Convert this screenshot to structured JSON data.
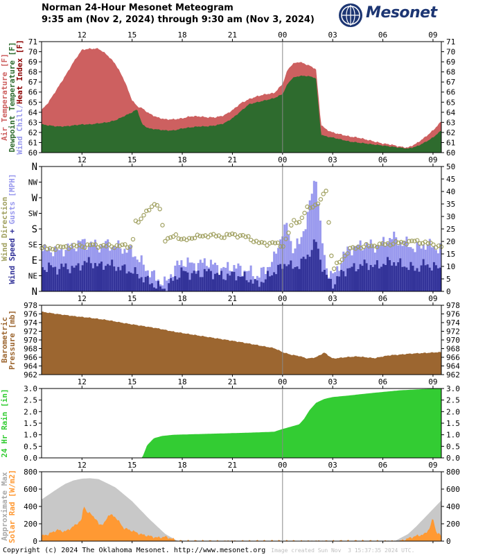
{
  "title_line1": "Norman 24-Hour Mesonet Meteogram",
  "title_line2": "9:35 am (Nov 2, 2024) through 9:30 am (Nov 3, 2024)",
  "logo_text": "Mesonet",
  "footer_copyright": "Copyright (c) 2024 The Oklahoma Mesonet. http://www.mesonet.org",
  "footer_stamp": "Image created Sun Nov  3 15:37:35 2024 UTC.",
  "colors": {
    "air_temperature": "#cd6060",
    "dewpoint": "#2e6b2e",
    "wind_chill_heat_index": "#8b0000",
    "wind_direction": "#a0a060",
    "wind_speed": "#333399",
    "wind_gust": "#9999ee",
    "pressure": "#9c6630",
    "rain": "#33cc33",
    "solar_max": "#c8c8c8",
    "solar_rad": "#ff9933"
  },
  "x_axis": {
    "start_hour": 9.583,
    "end_hour": 33.5,
    "tick_labels": [
      "12",
      "15",
      "18",
      "21",
      "00",
      "03",
      "06",
      "09"
    ],
    "tick_hours": [
      12,
      15,
      18,
      21,
      24,
      27,
      30,
      33
    ],
    "midnight_hour": 24
  },
  "chart_data": [
    {
      "type": "area",
      "name": "temperature",
      "ylabel_parts": [
        "Air Temperature [F]",
        "Dewpoint Temperature [F]",
        "Wind Chill/Heat Index [F]"
      ],
      "ylim": [
        60,
        71
      ],
      "y_ticks": [
        "60",
        "61",
        "62",
        "63",
        "64",
        "65",
        "66",
        "67",
        "68",
        "69",
        "70",
        "71"
      ],
      "x": [
        9.58,
        10,
        10.5,
        11,
        11.5,
        12,
        12.5,
        13,
        13.5,
        14,
        14.5,
        15,
        15.3,
        15.6,
        16,
        16.5,
        17,
        17.5,
        18,
        18.5,
        19,
        19.5,
        20,
        20.5,
        21,
        21.5,
        22,
        22.5,
        23,
        23.5,
        24,
        24.3,
        24.6,
        25,
        25.5,
        26,
        26.3,
        26.6,
        27,
        27.5,
        28,
        28.5,
        29,
        29.5,
        30,
        30.5,
        31,
        31.5,
        32,
        32.5,
        33,
        33.5
      ],
      "series": [
        {
          "name": "Air Temperature",
          "values": [
            64.2,
            65.0,
            66.3,
            67.6,
            69.0,
            70.2,
            70.3,
            70.3,
            69.7,
            68.8,
            67.3,
            65.2,
            64.6,
            64.4,
            63.9,
            63.5,
            63.3,
            63.3,
            63.4,
            63.6,
            63.6,
            63.5,
            63.5,
            63.7,
            64.2,
            64.9,
            65.3,
            65.6,
            65.8,
            65.9,
            66.8,
            68.2,
            68.8,
            69.0,
            68.7,
            68.3,
            62.8,
            62.3,
            62.0,
            61.8,
            61.6,
            61.5,
            61.3,
            61.1,
            60.9,
            60.8,
            60.6,
            60.5,
            60.9,
            61.5,
            62.2,
            63.1
          ]
        },
        {
          "name": "Dewpoint Temperature",
          "values": [
            62.8,
            62.7,
            62.6,
            62.6,
            62.7,
            62.8,
            62.8,
            62.9,
            63.0,
            63.2,
            63.6,
            64.0,
            64.3,
            62.8,
            62.4,
            62.3,
            62.2,
            62.2,
            62.4,
            62.5,
            62.6,
            62.6,
            62.7,
            62.9,
            63.4,
            64.1,
            64.8,
            65.0,
            65.2,
            65.4,
            65.8,
            66.8,
            67.4,
            67.6,
            67.6,
            67.4,
            61.8,
            61.6,
            61.5,
            61.3,
            61.1,
            61.0,
            60.9,
            60.8,
            60.7,
            60.6,
            60.5,
            60.4,
            60.6,
            61.0,
            61.5,
            62.2
          ]
        }
      ]
    },
    {
      "type": "bar",
      "name": "wind",
      "ylabel_parts": [
        "Wind Direction",
        "Wind Speed + Gusts [MPH]"
      ],
      "ylim": [
        0,
        50
      ],
      "y_ticks_right": [
        "0",
        "5",
        "10",
        "15",
        "20",
        "25",
        "30",
        "35",
        "40",
        "45",
        "50"
      ],
      "direction_ticks": [
        "N",
        "NE",
        "E",
        "SE",
        "S",
        "SW",
        "W",
        "NW",
        "N"
      ],
      "x": [
        9.58,
        10,
        10.5,
        11,
        11.5,
        12,
        12.5,
        13,
        13.5,
        14,
        14.5,
        15,
        15.5,
        16,
        16.5,
        17,
        17.5,
        18,
        18.5,
        19,
        19.5,
        20,
        20.5,
        21,
        21.5,
        22,
        22.5,
        23,
        23.5,
        24,
        24.3,
        24.6,
        25,
        25.5,
        25.8,
        26,
        26.3,
        26.6,
        27,
        27.3,
        27.6,
        28,
        28.5,
        29,
        29.5,
        30,
        30.5,
        31,
        31.5,
        32,
        32.5,
        33,
        33.5
      ],
      "series": [
        {
          "name": "Wind Speed",
          "values": [
            9,
            10,
            9,
            10,
            9,
            11,
            12,
            10,
            11,
            10,
            9,
            8,
            6,
            4,
            2,
            1,
            5,
            8,
            7,
            7,
            8,
            7,
            6,
            7,
            6,
            5,
            3,
            5,
            8,
            10,
            12,
            9,
            11,
            14,
            18,
            20,
            12,
            6,
            3,
            5,
            8,
            9,
            10,
            11,
            10,
            11,
            12,
            11,
            10,
            9,
            11,
            10,
            9
          ]
        },
        {
          "name": "Wind Gust",
          "values": [
            16,
            17,
            16,
            17,
            18,
            20,
            19,
            18,
            19,
            18,
            17,
            16,
            12,
            8,
            5,
            3,
            9,
            12,
            11,
            11,
            12,
            10,
            9,
            10,
            9,
            8,
            6,
            9,
            13,
            24,
            26,
            17,
            19,
            30,
            41,
            47,
            23,
            10,
            6,
            9,
            14,
            17,
            18,
            19,
            18,
            19,
            22,
            20,
            19,
            17,
            19,
            18,
            17
          ]
        }
      ],
      "direction_points": {
        "x": [
          9.6,
          10,
          10.5,
          11,
          11.5,
          12,
          12.5,
          13,
          13.5,
          14,
          14.5,
          15,
          15.2,
          15.4,
          15.6,
          15.8,
          16.2,
          16.6,
          17,
          17.3,
          17.6,
          18,
          18.5,
          19,
          19.5,
          20,
          20.5,
          21,
          21.5,
          22,
          22.5,
          23,
          23.5,
          24,
          24.2,
          24.4,
          24.7,
          25,
          25.5,
          26,
          26.3,
          26.6,
          27,
          27.3,
          27.6,
          28,
          28.5,
          29,
          29.5,
          30,
          30.5,
          31,
          31.5,
          32,
          32.5,
          33,
          33.5
        ],
        "deg": [
          125,
          122,
          126,
          128,
          130,
          131,
          133,
          132,
          130,
          131,
          132,
          130,
          205,
          192,
          218,
          230,
          242,
          255,
          140,
          155,
          165,
          145,
          155,
          158,
          162,
          160,
          158,
          165,
          160,
          155,
          140,
          138,
          140,
          130,
          150,
          175,
          205,
          200,
          240,
          250,
          262,
          295,
          60,
          80,
          95,
          120,
          128,
          130,
          132,
          135,
          138,
          140,
          142,
          145,
          140,
          135,
          128
        ]
      }
    },
    {
      "type": "area",
      "name": "pressure",
      "ylabel_parts": [
        "Barometric",
        "Pressure [mb]"
      ],
      "ylim": [
        962,
        978
      ],
      "y_ticks": [
        "962",
        "964",
        "966",
        "968",
        "970",
        "972",
        "974",
        "976",
        "978"
      ],
      "x": [
        9.58,
        10.5,
        11.5,
        12.5,
        13.5,
        14.5,
        15.5,
        16.5,
        17.5,
        18.5,
        19.5,
        20.5,
        21.5,
        22.5,
        23.5,
        24,
        24.5,
        25,
        25.5,
        26,
        26.5,
        27,
        27.5,
        28,
        28.5,
        29,
        29.5,
        30,
        30.5,
        31,
        31.5,
        32,
        32.5,
        33,
        33.5
      ],
      "values": [
        976.5,
        976.0,
        975.5,
        975.1,
        974.6,
        973.9,
        973.3,
        972.7,
        971.9,
        971.3,
        970.7,
        970.1,
        969.5,
        968.8,
        968.1,
        967.2,
        966.6,
        966.3,
        965.7,
        966.0,
        967.1,
        965.7,
        965.9,
        966.1,
        966.2,
        966.0,
        965.8,
        966.2,
        966.5,
        966.6,
        966.8,
        966.9,
        967.0,
        967.1,
        967.2
      ]
    },
    {
      "type": "area",
      "name": "rain",
      "ylabel": "24 Hr Rain [in]",
      "ylim": [
        0,
        3
      ],
      "y_ticks": [
        "0.0",
        "0.5",
        "1.0",
        "1.5",
        "2.0",
        "2.5",
        "3.0"
      ],
      "x": [
        9.58,
        15.6,
        15.9,
        16.3,
        16.8,
        17.5,
        18.5,
        20,
        22,
        23.5,
        24,
        24.5,
        25,
        25.3,
        25.6,
        26,
        26.5,
        27,
        28,
        29,
        30,
        31,
        32,
        33,
        33.5
      ],
      "values": [
        0.0,
        0.0,
        0.55,
        0.85,
        0.95,
        1.0,
        1.02,
        1.05,
        1.09,
        1.13,
        1.25,
        1.35,
        1.45,
        1.7,
        2.05,
        2.38,
        2.55,
        2.63,
        2.7,
        2.78,
        2.85,
        2.92,
        2.96,
        2.99,
        3.0
      ]
    },
    {
      "type": "area",
      "name": "solar",
      "ylabel_parts": [
        "Approximate Max",
        "Solar Rad [W/m2]"
      ],
      "ylim": [
        0,
        800
      ],
      "y_ticks": [
        "0",
        "200",
        "400",
        "600",
        "800"
      ],
      "series": [
        {
          "name": "Approximate Max",
          "x": [
            9.58,
            10.5,
            11,
            11.5,
            12,
            12.5,
            13,
            14,
            15,
            16,
            17,
            17.75,
            30.7,
            31.5,
            32,
            32.5,
            33,
            33.5
          ],
          "values": [
            480,
            600,
            660,
            700,
            720,
            725,
            715,
            620,
            460,
            260,
            80,
            0,
            0,
            80,
            170,
            270,
            370,
            470
          ]
        },
        {
          "name": "Solar Rad",
          "x": [
            9.58,
            10,
            10.5,
            11,
            11.5,
            12,
            12.1,
            12.3,
            12.6,
            13,
            13.3,
            13.6,
            14,
            14.5,
            15,
            15.5,
            16,
            16.5,
            17,
            17.5,
            17.8,
            31,
            31.5,
            32,
            32.5,
            32.8,
            33,
            33.2,
            33.5
          ],
          "values": [
            60,
            80,
            130,
            110,
            170,
            250,
            430,
            330,
            310,
            200,
            190,
            310,
            280,
            150,
            120,
            80,
            60,
            40,
            50,
            20,
            0,
            0,
            30,
            60,
            80,
            150,
            270,
            100,
            60
          ]
        }
      ]
    }
  ]
}
